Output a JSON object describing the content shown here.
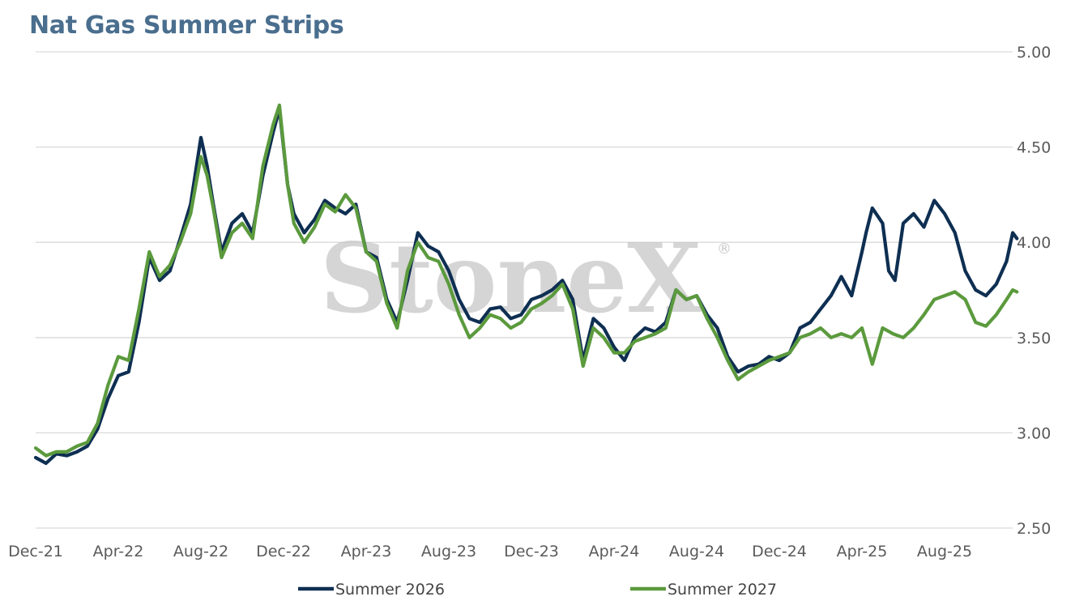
{
  "header": {
    "title": "Nat Gas Summer Strips"
  },
  "watermark": {
    "text": "StoneX",
    "reg": "®"
  },
  "colors": {
    "summer_2026": "#0e2f52",
    "summer_2027": "#5b9a3d",
    "grid": "#d9d9d9",
    "title": "#4a6e8e"
  },
  "chart_data": {
    "type": "line",
    "title": "Nat Gas Summer Strips",
    "xlabel": "",
    "ylabel": "",
    "y_axis_position": "right",
    "ylim": [
      2.5,
      5.0
    ],
    "yticks": [
      "2.50",
      "3.00",
      "3.50",
      "4.00",
      "4.50",
      "5.00"
    ],
    "x_tick_labels": [
      "Dec-21",
      "Apr-22",
      "Aug-22",
      "Dec-22",
      "Apr-23",
      "Aug-23",
      "Dec-23",
      "Apr-24",
      "Aug-24",
      "Dec-24",
      "Apr-25",
      "Aug-25"
    ],
    "x_range_months": [
      0,
      47.5
    ],
    "grid": true,
    "legend": "bottom",
    "series": [
      {
        "name": "Summer 2026",
        "points": [
          [
            0,
            2.87
          ],
          [
            0.5,
            2.84
          ],
          [
            1,
            2.89
          ],
          [
            1.5,
            2.88
          ],
          [
            2,
            2.9
          ],
          [
            2.5,
            2.93
          ],
          [
            3,
            3.02
          ],
          [
            3.5,
            3.18
          ],
          [
            4,
            3.3
          ],
          [
            4.5,
            3.32
          ],
          [
            5,
            3.58
          ],
          [
            5.5,
            3.92
          ],
          [
            6,
            3.8
          ],
          [
            6.5,
            3.85
          ],
          [
            7,
            4.02
          ],
          [
            7.5,
            4.2
          ],
          [
            8,
            4.55
          ],
          [
            8.3,
            4.4
          ],
          [
            8.6,
            4.2
          ],
          [
            9,
            3.95
          ],
          [
            9.5,
            4.1
          ],
          [
            10,
            4.15
          ],
          [
            10.5,
            4.05
          ],
          [
            11,
            4.35
          ],
          [
            11.5,
            4.58
          ],
          [
            11.8,
            4.7
          ],
          [
            12.2,
            4.3
          ],
          [
            12.5,
            4.15
          ],
          [
            13,
            4.05
          ],
          [
            13.5,
            4.12
          ],
          [
            14,
            4.22
          ],
          [
            14.5,
            4.18
          ],
          [
            15,
            4.15
          ],
          [
            15.5,
            4.2
          ],
          [
            16,
            3.95
          ],
          [
            16.5,
            3.92
          ],
          [
            17,
            3.7
          ],
          [
            17.5,
            3.58
          ],
          [
            18,
            3.8
          ],
          [
            18.5,
            4.05
          ],
          [
            19,
            3.98
          ],
          [
            19.5,
            3.95
          ],
          [
            20,
            3.85
          ],
          [
            20.5,
            3.7
          ],
          [
            21,
            3.6
          ],
          [
            21.5,
            3.58
          ],
          [
            22,
            3.65
          ],
          [
            22.5,
            3.66
          ],
          [
            23,
            3.6
          ],
          [
            23.5,
            3.62
          ],
          [
            24,
            3.7
          ],
          [
            24.5,
            3.72
          ],
          [
            25,
            3.75
          ],
          [
            25.5,
            3.8
          ],
          [
            26,
            3.7
          ],
          [
            26.5,
            3.38
          ],
          [
            27,
            3.6
          ],
          [
            27.5,
            3.55
          ],
          [
            28,
            3.45
          ],
          [
            28.5,
            3.38
          ],
          [
            29,
            3.5
          ],
          [
            29.5,
            3.55
          ],
          [
            30,
            3.53
          ],
          [
            30.5,
            3.58
          ],
          [
            31,
            3.75
          ],
          [
            31.5,
            3.7
          ],
          [
            32,
            3.72
          ],
          [
            32.5,
            3.62
          ],
          [
            33,
            3.55
          ],
          [
            33.5,
            3.4
          ],
          [
            34,
            3.32
          ],
          [
            34.5,
            3.35
          ],
          [
            35,
            3.36
          ],
          [
            35.5,
            3.4
          ],
          [
            36,
            3.38
          ],
          [
            36.5,
            3.42
          ],
          [
            37,
            3.55
          ],
          [
            37.5,
            3.58
          ],
          [
            38,
            3.65
          ],
          [
            38.5,
            3.72
          ],
          [
            39,
            3.82
          ],
          [
            39.5,
            3.72
          ],
          [
            40,
            3.95
          ],
          [
            40.2,
            4.05
          ],
          [
            40.5,
            4.18
          ],
          [
            41,
            4.1
          ],
          [
            41.3,
            3.85
          ],
          [
            41.6,
            3.8
          ],
          [
            42,
            4.1
          ],
          [
            42.5,
            4.15
          ],
          [
            43,
            4.08
          ],
          [
            43.5,
            4.22
          ],
          [
            44,
            4.15
          ],
          [
            44.5,
            4.05
          ],
          [
            45,
            3.85
          ],
          [
            45.5,
            3.75
          ],
          [
            46,
            3.72
          ],
          [
            46.5,
            3.78
          ],
          [
            47,
            3.9
          ],
          [
            47.3,
            4.05
          ],
          [
            47.5,
            4.02
          ]
        ]
      },
      {
        "name": "Summer 2027",
        "points": [
          [
            0,
            2.92
          ],
          [
            0.5,
            2.88
          ],
          [
            1,
            2.9
          ],
          [
            1.5,
            2.9
          ],
          [
            2,
            2.93
          ],
          [
            2.5,
            2.95
          ],
          [
            3,
            3.05
          ],
          [
            3.5,
            3.25
          ],
          [
            4,
            3.4
          ],
          [
            4.5,
            3.38
          ],
          [
            5,
            3.65
          ],
          [
            5.5,
            3.95
          ],
          [
            6,
            3.82
          ],
          [
            6.5,
            3.88
          ],
          [
            7,
            4.0
          ],
          [
            7.5,
            4.15
          ],
          [
            8,
            4.45
          ],
          [
            8.3,
            4.35
          ],
          [
            8.6,
            4.18
          ],
          [
            9,
            3.92
          ],
          [
            9.5,
            4.05
          ],
          [
            10,
            4.1
          ],
          [
            10.5,
            4.02
          ],
          [
            11,
            4.4
          ],
          [
            11.5,
            4.62
          ],
          [
            11.8,
            4.72
          ],
          [
            12.2,
            4.3
          ],
          [
            12.5,
            4.1
          ],
          [
            13,
            4.0
          ],
          [
            13.5,
            4.08
          ],
          [
            14,
            4.2
          ],
          [
            14.5,
            4.16
          ],
          [
            15,
            4.25
          ],
          [
            15.5,
            4.18
          ],
          [
            16,
            3.95
          ],
          [
            16.5,
            3.9
          ],
          [
            17,
            3.68
          ],
          [
            17.5,
            3.55
          ],
          [
            18,
            3.85
          ],
          [
            18.5,
            4.0
          ],
          [
            19,
            3.92
          ],
          [
            19.5,
            3.9
          ],
          [
            20,
            3.78
          ],
          [
            20.5,
            3.62
          ],
          [
            21,
            3.5
          ],
          [
            21.5,
            3.55
          ],
          [
            22,
            3.62
          ],
          [
            22.5,
            3.6
          ],
          [
            23,
            3.55
          ],
          [
            23.5,
            3.58
          ],
          [
            24,
            3.65
          ],
          [
            24.5,
            3.68
          ],
          [
            25,
            3.72
          ],
          [
            25.5,
            3.78
          ],
          [
            26,
            3.65
          ],
          [
            26.5,
            3.35
          ],
          [
            27,
            3.55
          ],
          [
            27.5,
            3.5
          ],
          [
            28,
            3.42
          ],
          [
            28.5,
            3.42
          ],
          [
            29,
            3.48
          ],
          [
            29.5,
            3.5
          ],
          [
            30,
            3.52
          ],
          [
            30.5,
            3.55
          ],
          [
            31,
            3.75
          ],
          [
            31.5,
            3.7
          ],
          [
            32,
            3.72
          ],
          [
            32.5,
            3.6
          ],
          [
            33,
            3.5
          ],
          [
            33.5,
            3.38
          ],
          [
            34,
            3.28
          ],
          [
            34.5,
            3.32
          ],
          [
            35,
            3.35
          ],
          [
            35.5,
            3.38
          ],
          [
            36,
            3.4
          ],
          [
            36.5,
            3.42
          ],
          [
            37,
            3.5
          ],
          [
            37.5,
            3.52
          ],
          [
            38,
            3.55
          ],
          [
            38.5,
            3.5
          ],
          [
            39,
            3.52
          ],
          [
            39.5,
            3.5
          ],
          [
            40,
            3.55
          ],
          [
            40.5,
            3.36
          ],
          [
            41,
            3.55
          ],
          [
            41.5,
            3.52
          ],
          [
            42,
            3.5
          ],
          [
            42.5,
            3.55
          ],
          [
            43,
            3.62
          ],
          [
            43.5,
            3.7
          ],
          [
            44,
            3.72
          ],
          [
            44.5,
            3.74
          ],
          [
            45,
            3.7
          ],
          [
            45.5,
            3.58
          ],
          [
            46,
            3.56
          ],
          [
            46.5,
            3.62
          ],
          [
            47,
            3.7
          ],
          [
            47.3,
            3.75
          ],
          [
            47.5,
            3.74
          ]
        ]
      }
    ]
  }
}
